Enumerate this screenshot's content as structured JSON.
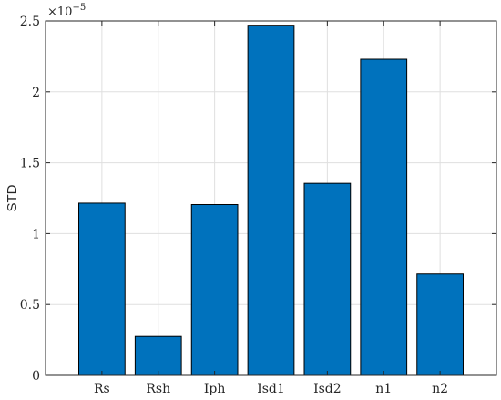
{
  "chart_data": {
    "type": "bar",
    "categories": [
      "Rs",
      "Rsh",
      "Iph",
      "Isd1",
      "Isd2",
      "n1",
      "n2"
    ],
    "values": [
      1.215e-05,
      2.75e-06,
      1.205e-05,
      2.47e-05,
      1.355e-05,
      2.23e-05,
      7.15e-06
    ],
    "ylabel": "STD",
    "xlabel": "",
    "ylim": [
      0,
      2.5e-05
    ],
    "yticks": [
      0,
      0.5,
      1,
      1.5,
      2,
      2.5
    ],
    "ytick_labels": [
      "0",
      "0.5",
      "1",
      "1.5",
      "2",
      "2.5"
    ],
    "y_exponent_label": "×10",
    "y_exponent_power": "−5",
    "grid": true,
    "bar_color": "#0072bd",
    "bar_edge_color": "#000000",
    "grid_color": "#dfdfdf",
    "axis_color": "#262626"
  }
}
